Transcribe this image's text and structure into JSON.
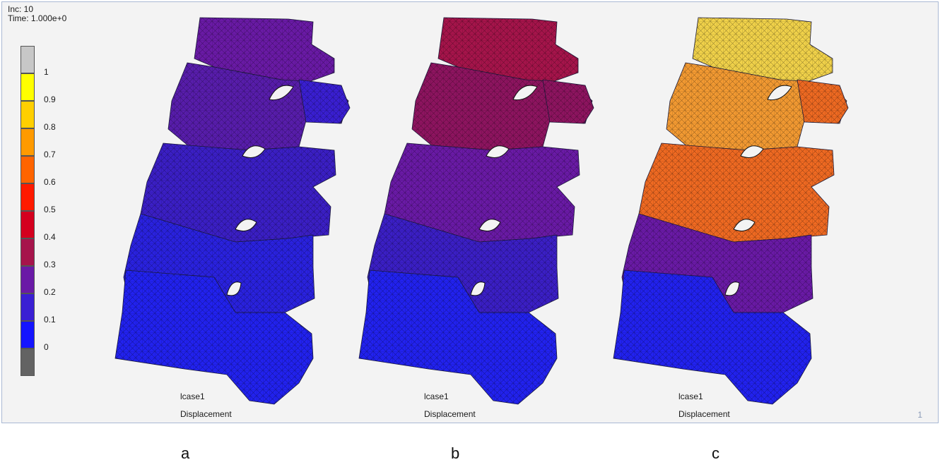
{
  "hud": {
    "inc": "Inc:  10",
    "time": "Time:  1.000e+0"
  },
  "legend": {
    "ticks": [
      "1",
      "0.9",
      "0.8",
      "0.7",
      "0.6",
      "0.5",
      "0.4",
      "0.3",
      "0.2",
      "0.1",
      "0"
    ],
    "colors": [
      "#c7c7c7",
      "#ffff00",
      "#ffcf00",
      "#ff9a00",
      "#ff6400",
      "#ff1a00",
      "#d4001e",
      "#a6144b",
      "#6a1aa6",
      "#3a1fd3",
      "#1414ff",
      "#636363"
    ]
  },
  "panels": [
    {
      "letter": "a",
      "load_case": "lcase1",
      "quantity": "Displacement",
      "colors": {
        "top": "#6a1aa6",
        "upper": "#581dac",
        "mid": "#3b1fc6",
        "lower": "#2a22e0",
        "base": "#2222f0",
        "process": "#3a1fd3"
      }
    },
    {
      "letter": "b",
      "load_case": "lcase1",
      "quantity": "Displacement",
      "colors": {
        "top": "#a6144b",
        "upper": "#8e1460",
        "mid": "#6a1aa6",
        "lower": "#3b1fc6",
        "base": "#2222f0",
        "process": "#8e1460"
      }
    },
    {
      "letter": "c",
      "load_case": "lcase1",
      "quantity": "Displacement",
      "colors": {
        "top": "#f1d24a",
        "upper": "#f39a32",
        "mid": "#f06a22",
        "lower": "#6a1aa6",
        "base": "#2222f0",
        "process": "#ef6a22"
      }
    }
  ],
  "frame_number": "1"
}
